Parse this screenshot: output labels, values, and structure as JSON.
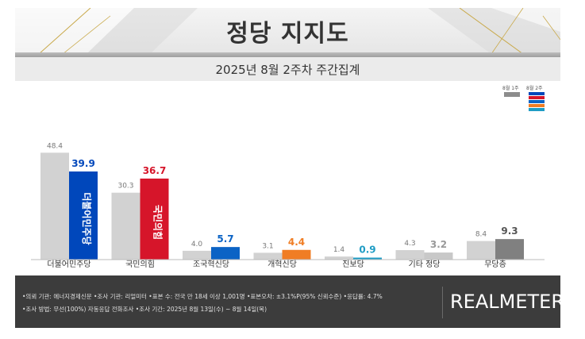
{
  "header": {
    "title": "정당 지지도",
    "subtitle": "2025년 8월 2주차 주간집계"
  },
  "legend": {
    "prev_label": "8월 1주",
    "cur_label": "8월 2주",
    "prev_color": "#8c8c8c",
    "cur_colors": [
      "#0047bb",
      "#d6152a",
      "#0b63c5",
      "#f07d24",
      "#1f9cc4"
    ]
  },
  "chart_data": {
    "type": "bar",
    "title": "정당 지지도",
    "subtitle": "2025년 8월 2주차 주간집계",
    "categories": [
      "더불어민주당",
      "국민의힘",
      "조국혁신당",
      "개혁신당",
      "진보당",
      "기타 정당",
      "무당층"
    ],
    "series": [
      {
        "name": "8월 1주",
        "values": [
          48.4,
          30.3,
          4.0,
          3.1,
          1.4,
          4.3,
          8.4
        ]
      },
      {
        "name": "8월 2주",
        "values": [
          39.9,
          36.7,
          5.7,
          4.4,
          0.9,
          3.2,
          9.3
        ]
      }
    ],
    "colors": {
      "prev": "#d2d2d2",
      "current": [
        "#0047bb",
        "#d6152a",
        "#0b63c5",
        "#f07d24",
        "#1f9cc4",
        "#c8c8c8",
        "#808080"
      ],
      "current_labels": [
        "#0047bb",
        "#d6152a",
        "#0b63c5",
        "#f07d24",
        "#1f9cc4",
        "#999999",
        "#555555"
      ]
    },
    "bar_logos": [
      "더불어민주당",
      "국민의힘"
    ],
    "ylim": [
      0,
      55
    ],
    "grid": false,
    "legend_position": "top-right"
  },
  "footer": {
    "note_1": "•의뢰 기관: 에너지경제신문  •조사 기관: 리얼미터 •표본 수: 전국 만 18세 이상 1,001명 •표본오차: ±3.1%P(95% 신뢰수준) •응답률: 4.7%",
    "note_2": "•조사 방법: 무선(100%) 자동응답 전화조사 •조사 기간: 2025년 8월 13일(수) ~ 8월 14일(목)",
    "brand": "REALMETER"
  }
}
